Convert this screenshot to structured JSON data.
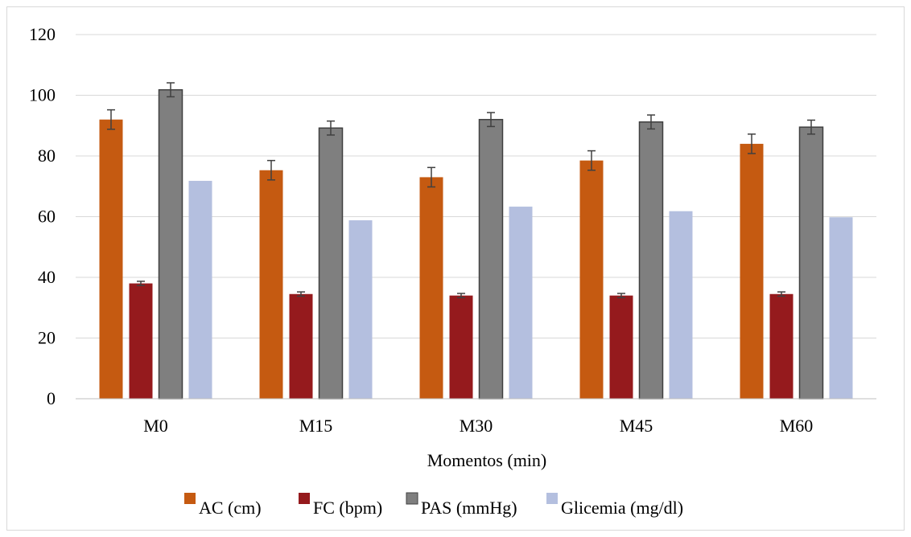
{
  "chart_data": {
    "type": "bar",
    "title": "",
    "xlabel": "Momentos (min)",
    "ylabel": "",
    "ylim": [
      0,
      120
    ],
    "yticks": [
      0,
      20,
      40,
      60,
      80,
      100,
      120
    ],
    "grid": true,
    "legend_position": "bottom",
    "categories": [
      "M0",
      "M15",
      "M30",
      "M45",
      "M60"
    ],
    "series": [
      {
        "name": "AC (cm)",
        "color": "#c55a11",
        "values": [
          92,
          75.3,
          73,
          78.5,
          84
        ],
        "errors": [
          3.2,
          3.2,
          3.2,
          3.2,
          3.2
        ]
      },
      {
        "name": "FC (bpm)",
        "color": "#951a1d",
        "values": [
          38,
          34.5,
          34,
          34,
          34.5
        ],
        "errors": [
          0.7,
          0.7,
          0.7,
          0.7,
          0.7
        ]
      },
      {
        "name": "PAS (mmHg)",
        "color": "#7f7f7f",
        "values": [
          101.8,
          89.2,
          92,
          91.2,
          89.5
        ],
        "errors": [
          2.3,
          2.3,
          2.3,
          2.3,
          2.3
        ]
      },
      {
        "name": "Glicemia (mg/dl)",
        "color": "#b4bfdf",
        "values": [
          71.8,
          58.8,
          63.3,
          61.8,
          59.8
        ]
      }
    ]
  }
}
